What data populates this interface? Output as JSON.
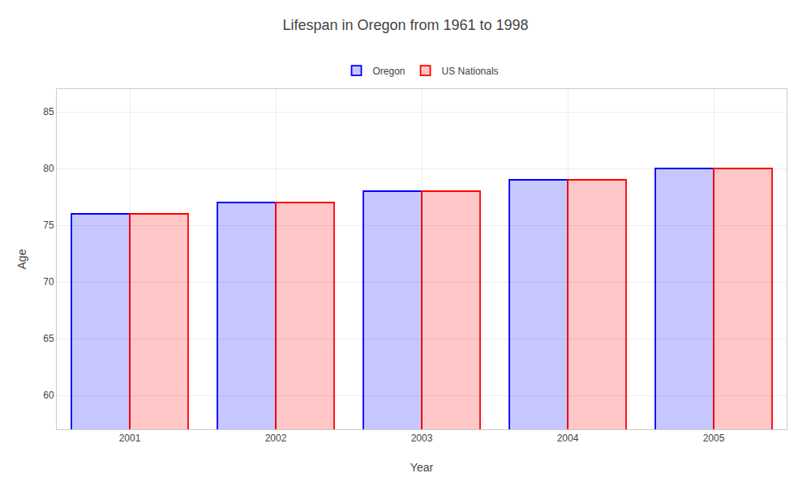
{
  "chart_data": {
    "type": "bar",
    "title": "Lifespan in Oregon from 1961 to 1998",
    "xlabel": "Year",
    "ylabel": "Age",
    "categories": [
      "2001",
      "2002",
      "2003",
      "2004",
      "2005"
    ],
    "series": [
      {
        "name": "Oregon",
        "color": "#0000ff",
        "values": [
          76,
          77,
          78,
          79,
          80
        ]
      },
      {
        "name": "US Nationals",
        "color": "#ff0000",
        "values": [
          76,
          77,
          78,
          79,
          80
        ]
      }
    ],
    "ylim": [
      57,
      87
    ],
    "yticks": [
      60,
      65,
      70,
      75,
      80,
      85
    ],
    "grid": true,
    "legend": "top"
  }
}
